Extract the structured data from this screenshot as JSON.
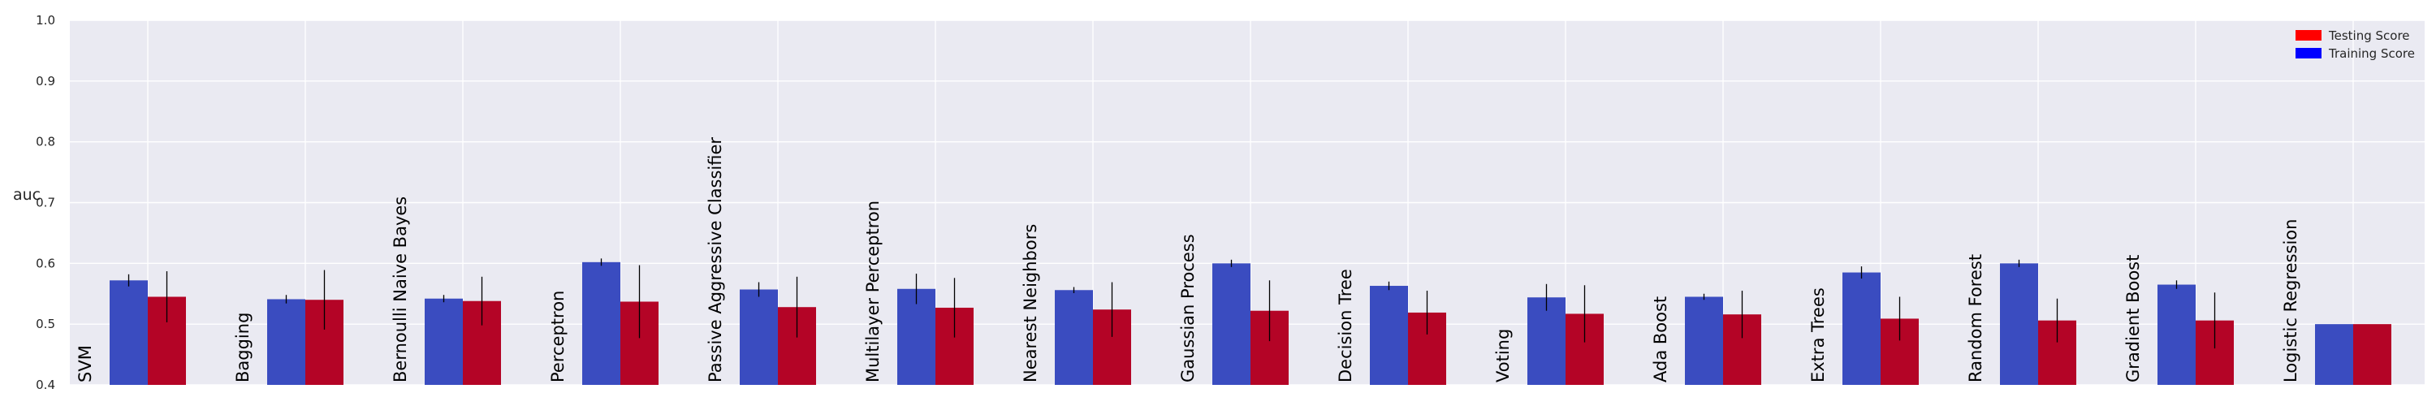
{
  "chart_data": {
    "type": "bar",
    "title": "",
    "xlabel": "",
    "ylabel": "auc",
    "ylim": [
      0.4,
      1.0
    ],
    "yticks": [
      "0.4",
      "0.5",
      "0.6",
      "0.7",
      "0.8",
      "0.9",
      "1.0"
    ],
    "grid": true,
    "legend_position": "top-right",
    "categories": [
      "SVM",
      "Bagging",
      "Bernoulli Naive Bayes",
      "Perceptron",
      "Passive Aggressive Classifier",
      "Multilayer Perceptron",
      "Nearest Neighbors",
      "Gaussian Process",
      "Decision Tree",
      "Voting",
      "Ada Boost",
      "Extra Trees",
      "Random Forest",
      "Gradient Boost",
      "Logistic Regression"
    ],
    "series": [
      {
        "name": "Training Score",
        "color": "#3a4cc0",
        "values": [
          0.572,
          0.541,
          0.542,
          0.602,
          0.557,
          0.558,
          0.556,
          0.6,
          0.563,
          0.544,
          0.545,
          0.585,
          0.6,
          0.565,
          0.5
        ],
        "errors": [
          0.01,
          0.007,
          0.006,
          0.006,
          0.012,
          0.025,
          0.005,
          0.006,
          0.007,
          0.022,
          0.005,
          0.01,
          0.006,
          0.007,
          0.0
        ]
      },
      {
        "name": "Testing Score",
        "color": "#b40426",
        "values": [
          0.545,
          0.54,
          0.538,
          0.537,
          0.528,
          0.527,
          0.524,
          0.522,
          0.519,
          0.517,
          0.516,
          0.509,
          0.506,
          0.506,
          0.5
        ],
        "errors": [
          0.042,
          0.049,
          0.04,
          0.06,
          0.05,
          0.049,
          0.045,
          0.05,
          0.036,
          0.047,
          0.039,
          0.036,
          0.036,
          0.046,
          0.0
        ]
      }
    ],
    "legend": [
      {
        "label": "Testing Score",
        "color": "#ff0000"
      },
      {
        "label": "Training Score",
        "color": "#0000ff"
      }
    ]
  }
}
